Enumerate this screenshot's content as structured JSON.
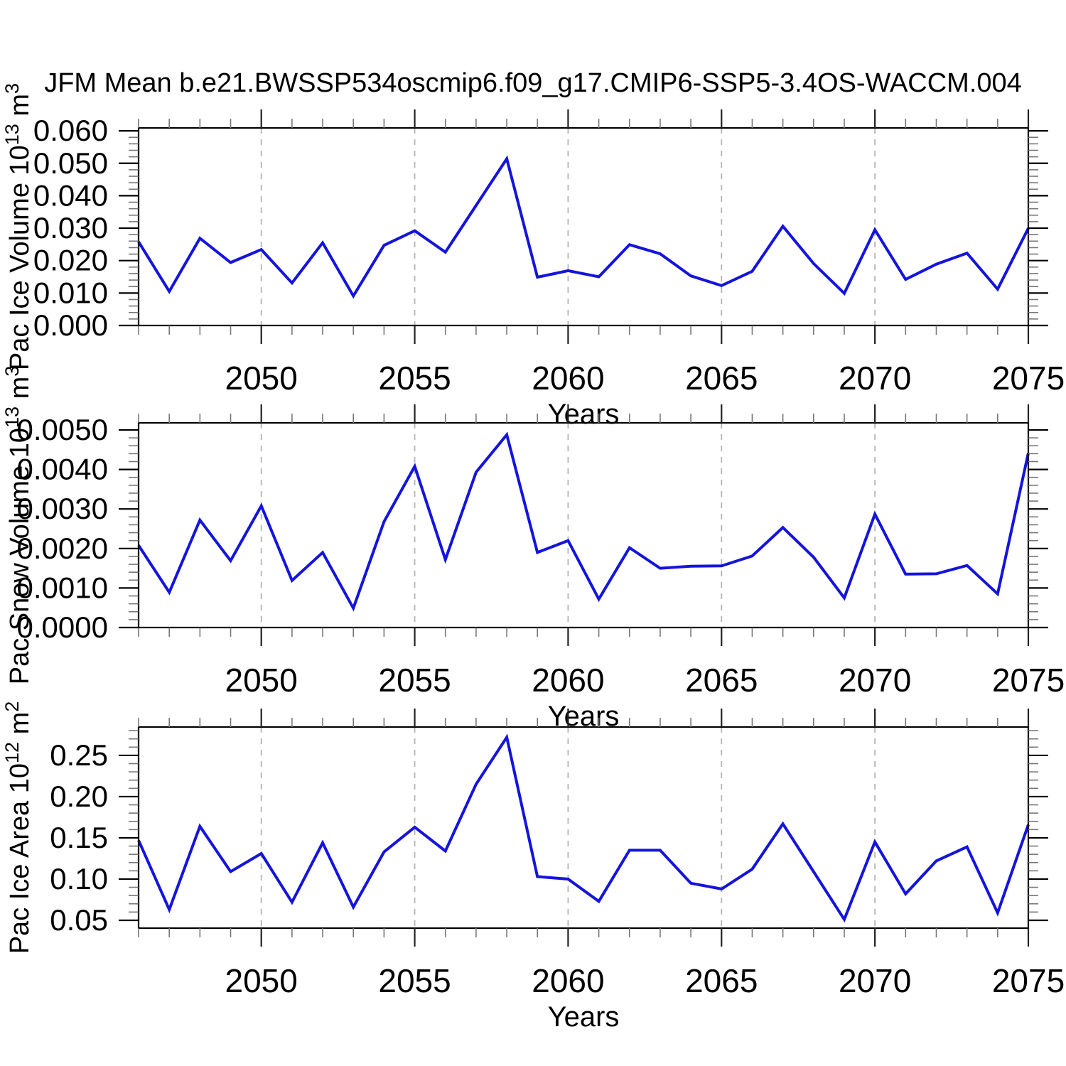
{
  "title": "JFM Mean b.e21.BWSSP534oscmip6.f09_g17.CMIP6-SSP5-3.4OS-WACCM.004",
  "colors": {
    "line": "#1414dd",
    "grid": "#b4b4b4",
    "axis": "#000000",
    "major_tick": "#222222",
    "minor_tick": "#777777"
  },
  "x_axis": {
    "label": "Years",
    "min": 2046,
    "max": 2075,
    "major_ticks": [
      2050,
      2055,
      2060,
      2065,
      2070,
      2075
    ],
    "major_tick_labels": [
      "2050",
      "2055",
      "2060",
      "2065",
      "2070",
      "2075"
    ],
    "gridlines": [
      2050,
      2055,
      2060,
      2065,
      2070
    ],
    "minor_step": 1
  },
  "years": [
    2046,
    2047,
    2048,
    2049,
    2050,
    2051,
    2052,
    2053,
    2054,
    2055,
    2056,
    2057,
    2058,
    2059,
    2060,
    2061,
    2062,
    2063,
    2064,
    2065,
    2066,
    2067,
    2068,
    2069,
    2070,
    2071,
    2072,
    2073,
    2074,
    2075
  ],
  "chart_data": [
    {
      "type": "line",
      "title": "",
      "ylabel": "Pac Ice Volume 10^13 m^3",
      "ylabel_parts": [
        {
          "t": "Pac Ice Volume 10",
          "sup": false
        },
        {
          "t": "13",
          "sup": true
        },
        {
          "t": " m",
          "sup": false
        },
        {
          "t": "3",
          "sup": true
        }
      ],
      "xlabel": "Years",
      "ylim": [
        0,
        0.0609
      ],
      "ytick_values": [
        0.0,
        0.01,
        0.02,
        0.03,
        0.04,
        0.05,
        0.06
      ],
      "ytick_labels": [
        "0.000",
        "0.010",
        "0.020",
        "0.030",
        "0.040",
        "0.050",
        "0.060"
      ],
      "y_minor_step": 0.002,
      "grid": true,
      "legend": "none",
      "values": [
        0.0258,
        0.0105,
        0.0269,
        0.0194,
        0.0234,
        0.0131,
        0.0255,
        0.0091,
        0.0247,
        0.0292,
        0.0226,
        0.037,
        0.0514,
        0.0149,
        0.0169,
        0.015,
        0.0249,
        0.0221,
        0.0153,
        0.0123,
        0.0167,
        0.0306,
        0.0191,
        0.0099,
        0.0295,
        0.0142,
        0.0189,
        0.0223,
        0.0112,
        0.03
      ]
    },
    {
      "type": "line",
      "title": "",
      "ylabel": "Pac Snow Volume 10^13 m^3",
      "ylabel_parts": [
        {
          "t": "Pac Snow Volume 10",
          "sup": false
        },
        {
          "t": "13",
          "sup": true
        },
        {
          "t": " m",
          "sup": false
        },
        {
          "t": "3",
          "sup": true
        }
      ],
      "xlabel": "Years",
      "ylim": [
        0,
        0.00518
      ],
      "ytick_values": [
        0.0,
        0.001,
        0.002,
        0.003,
        0.004,
        0.005
      ],
      "ytick_labels": [
        "0.0000",
        "0.0010",
        "0.0020",
        "0.0030",
        "0.0040",
        "0.0050"
      ],
      "y_minor_step": 0.0002,
      "grid": true,
      "legend": "none",
      "values": [
        0.00208,
        0.00089,
        0.00272,
        0.00169,
        0.00308,
        0.00119,
        0.0019,
        0.00049,
        0.00268,
        0.00408,
        0.00172,
        0.00393,
        0.00488,
        0.0019,
        0.0022,
        0.00072,
        0.00202,
        0.0015,
        0.00155,
        0.00156,
        0.00181,
        0.00253,
        0.00178,
        0.00075,
        0.00287,
        0.00135,
        0.00136,
        0.00157,
        0.00085,
        0.00442
      ]
    },
    {
      "type": "line",
      "title": "",
      "ylabel": "Pac Ice Area 10^12 m^2",
      "ylabel_parts": [
        {
          "t": "Pac Ice Area 10",
          "sup": false
        },
        {
          "t": "12",
          "sup": true
        },
        {
          "t": " m",
          "sup": false
        },
        {
          "t": "2",
          "sup": true
        }
      ],
      "xlabel": "Years",
      "ylim": [
        0.0405,
        0.2844
      ],
      "ytick_values": [
        0.05,
        0.1,
        0.15,
        0.2,
        0.25
      ],
      "ytick_labels": [
        "0.05",
        "0.10",
        "0.15",
        "0.20",
        "0.25"
      ],
      "y_minor_step": 0.01,
      "grid": true,
      "legend": "none",
      "values": [
        0.147,
        0.063,
        0.164,
        0.109,
        0.131,
        0.072,
        0.144,
        0.066,
        0.133,
        0.163,
        0.134,
        0.215,
        0.272,
        0.103,
        0.1,
        0.073,
        0.135,
        0.135,
        0.095,
        0.088,
        0.112,
        0.167,
        0.109,
        0.051,
        0.145,
        0.082,
        0.122,
        0.139,
        0.059,
        0.166
      ]
    }
  ]
}
